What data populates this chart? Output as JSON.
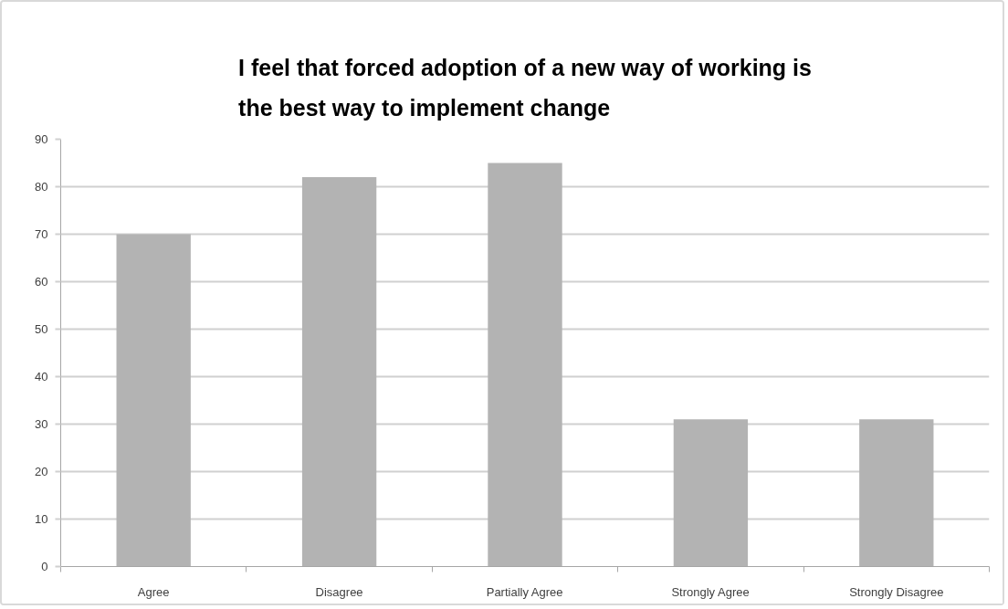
{
  "chart_data": {
    "type": "bar",
    "title": "I feel that forced adoption of a new way of working is the best way to implement change",
    "categories": [
      "Agree",
      "Disagree",
      "Partially Agree",
      "Strongly Agree",
      "Strongly Disagree"
    ],
    "values": [
      70,
      82,
      85,
      31,
      31
    ],
    "color": "#b3b3b3",
    "ylim": [
      0,
      90
    ],
    "yticks": [
      0,
      10,
      20,
      30,
      40,
      50,
      60,
      70,
      80,
      90
    ],
    "grid": "y"
  }
}
